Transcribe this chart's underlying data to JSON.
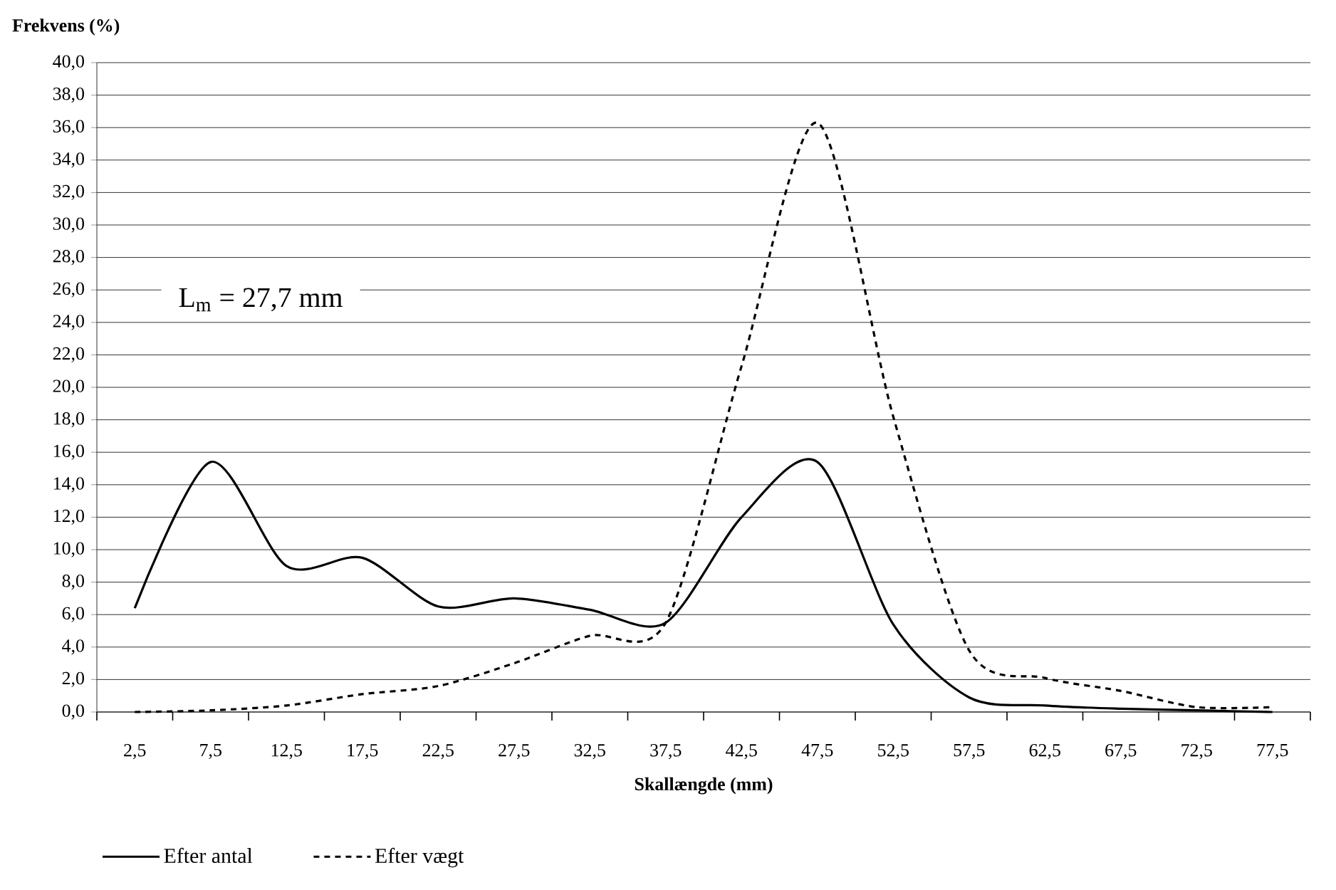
{
  "chart_data": {
    "type": "line",
    "xlabel": "Skallængde (mm)",
    "ylabel": "Frekvens (%)",
    "categories": [
      "2,5",
      "7,5",
      "12,5",
      "17,5",
      "22,5",
      "27,5",
      "32,5",
      "37,5",
      "42,5",
      "47,5",
      "52,5",
      "57,5",
      "62,5",
      "67,5",
      "72,5",
      "77,5"
    ],
    "series": [
      {
        "name": "Efter antal",
        "color": "#000000",
        "line_style": "solid",
        "values": [
          6.4,
          15.4,
          9.0,
          9.5,
          6.5,
          7.0,
          6.3,
          5.5,
          12.0,
          15.4,
          5.4,
          0.9,
          0.4,
          0.2,
          0.1,
          0.0
        ]
      },
      {
        "name": "Efter vægt",
        "color": "#000000",
        "line_style": "dashed",
        "values": [
          0.0,
          0.1,
          0.4,
          1.1,
          1.6,
          3.0,
          4.7,
          5.5,
          21.3,
          36.3,
          18.2,
          3.8,
          2.1,
          1.3,
          0.3,
          0.3
        ]
      }
    ],
    "ylim": [
      0,
      40
    ],
    "yticks": [
      {
        "value": 0,
        "label": "0,0"
      },
      {
        "value": 2,
        "label": "2,0"
      },
      {
        "value": 4,
        "label": "4,0"
      },
      {
        "value": 6,
        "label": "6,0"
      },
      {
        "value": 8,
        "label": "8,0"
      },
      {
        "value": 10,
        "label": "10,0"
      },
      {
        "value": 12,
        "label": "12,0"
      },
      {
        "value": 14,
        "label": "14,0"
      },
      {
        "value": 16,
        "label": "16,0"
      },
      {
        "value": 18,
        "label": "18,0"
      },
      {
        "value": 20,
        "label": "20,0"
      },
      {
        "value": 22,
        "label": "22,0"
      },
      {
        "value": 24,
        "label": "24,0"
      },
      {
        "value": 26,
        "label": "26,0"
      },
      {
        "value": 28,
        "label": "28,0"
      },
      {
        "value": 30,
        "label": "30,0"
      },
      {
        "value": 32,
        "label": "32,0"
      },
      {
        "value": 34,
        "label": "34,0"
      },
      {
        "value": 36,
        "label": "36,0"
      },
      {
        "value": 38,
        "label": "38,0"
      },
      {
        "value": 40,
        "label": "40,0"
      }
    ],
    "grid": "y",
    "legend": "bottom",
    "marker": "none",
    "annotations": [
      "L$_{m}$ = 27,7 mm"
    ]
  }
}
